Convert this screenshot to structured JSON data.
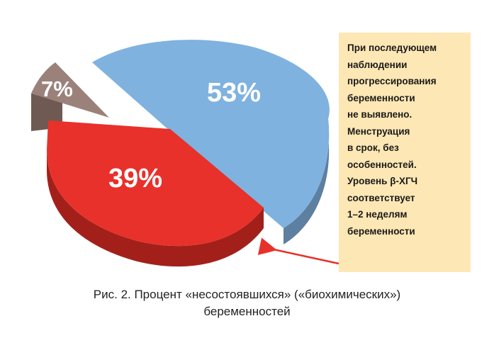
{
  "chart_data": {
    "type": "pie",
    "style": "3d-exploded",
    "slices": [
      {
        "label": "53%",
        "value": 53,
        "color": "#7fb2df"
      },
      {
        "label": "39%",
        "value": 39,
        "color": "#e8312a"
      },
      {
        "label": "7%",
        "value": 7,
        "color": "#9a827a"
      }
    ],
    "annotation": {
      "target_slice": "39%",
      "lines": [
        "При последующем",
        "наблюдении",
        "прогрессирования",
        "беременности",
        "не выявлено.",
        "Менструация",
        "в срок, без",
        "особенностей.",
        "Уровень β-ХГЧ",
        "соответствует",
        "1–2 неделям",
        "беременности"
      ],
      "background": "#fde7b4",
      "arrow_color": "#e8312a"
    },
    "caption_lines": [
      "Рис. 2. Процент «несостоявшихся» («биохимических»)",
      "беременностей"
    ]
  }
}
